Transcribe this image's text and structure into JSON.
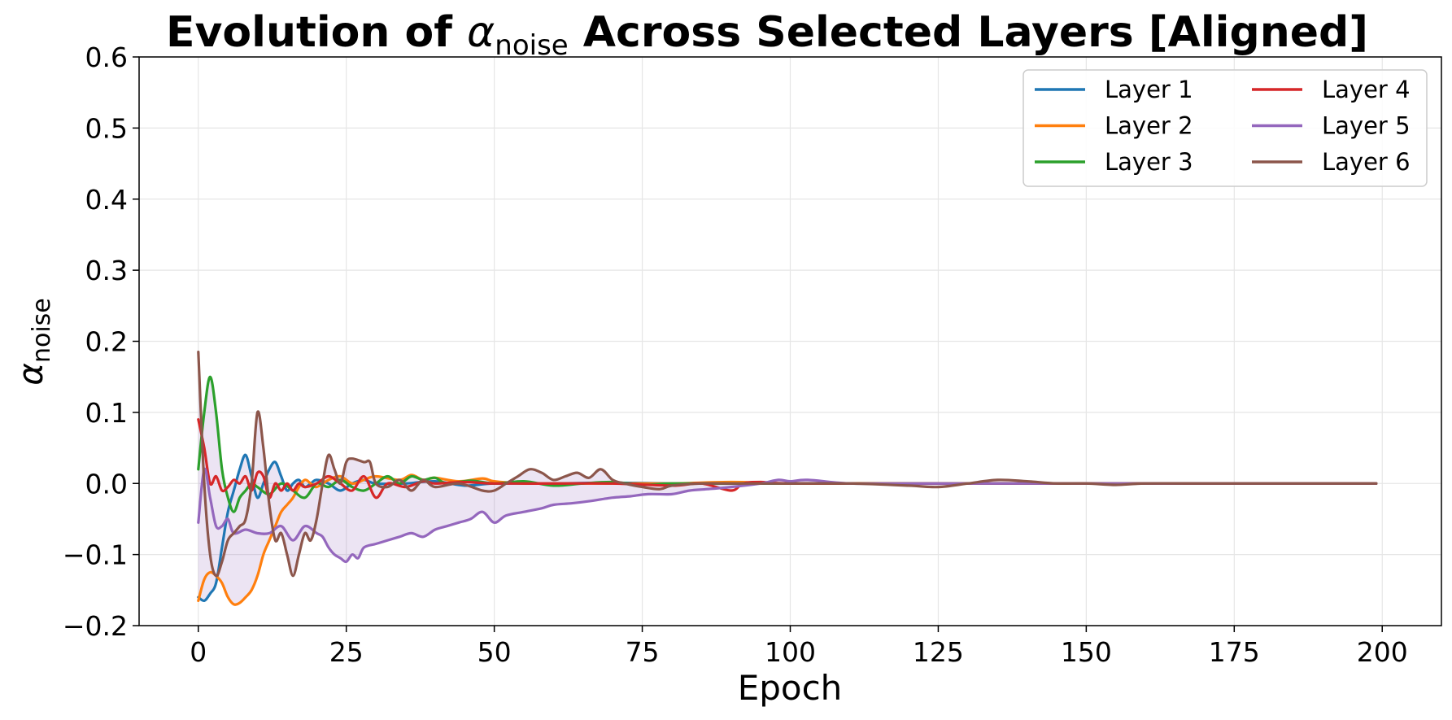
{
  "chart_data": {
    "type": "line",
    "title": {
      "prefix": "Evolution of ",
      "symbol": "α",
      "subscript": "noise",
      "suffix": " Across Selected Layers [Aligned]"
    },
    "xlabel": "Epoch",
    "ylabel": {
      "symbol": "α",
      "subscript": "noise"
    },
    "xlim": [
      -10,
      210
    ],
    "ylim": [
      -0.2,
      0.6
    ],
    "xticks": [
      0,
      25,
      50,
      75,
      100,
      125,
      150,
      175,
      200
    ],
    "xtick_labels": [
      "0",
      "25",
      "50",
      "75",
      "100",
      "125",
      "150",
      "175",
      "200"
    ],
    "yticks": [
      -0.2,
      -0.1,
      0.0,
      0.1,
      0.2,
      0.3,
      0.4,
      0.5,
      0.6
    ],
    "ytick_labels": [
      "−0.2",
      "−0.1",
      "0.0",
      "0.1",
      "0.2",
      "0.3",
      "0.4",
      "0.5",
      "0.6"
    ],
    "grid": true,
    "legend_position": "top-right",
    "legend_columns": 2,
    "band": {
      "label": "",
      "fill": "#9467bd",
      "opacity": 0.18
    },
    "series": [
      {
        "name": "Layer 1",
        "color": "#1f77b4",
        "points": [
          [
            0,
            -0.16
          ],
          [
            1,
            -0.165
          ],
          [
            2,
            -0.155
          ],
          [
            3,
            -0.14
          ],
          [
            4,
            -0.09
          ],
          [
            5,
            -0.04
          ],
          [
            6,
            -0.01
          ],
          [
            7,
            0.02
          ],
          [
            8,
            0.04
          ],
          [
            9,
            0.01
          ],
          [
            10,
            -0.02
          ],
          [
            11,
            0.0
          ],
          [
            12,
            0.02
          ],
          [
            13,
            0.03
          ],
          [
            14,
            0.01
          ],
          [
            15,
            -0.01
          ],
          [
            16,
            0.0
          ],
          [
            17,
            0.005
          ],
          [
            18,
            -0.005
          ],
          [
            19,
            0.0
          ],
          [
            20,
            0.005
          ],
          [
            22,
            0.0
          ],
          [
            24,
            -0.01
          ],
          [
            26,
            0.0
          ],
          [
            28,
            0.005
          ],
          [
            30,
            0.0
          ],
          [
            35,
            0.0
          ],
          [
            40,
            0.003
          ],
          [
            45,
            -0.003
          ],
          [
            50,
            0.0
          ],
          [
            60,
            0.0
          ],
          [
            70,
            0.001
          ],
          [
            80,
            0.0
          ],
          [
            90,
            0.0
          ],
          [
            100,
            0.0
          ],
          [
            120,
            0.0
          ],
          [
            150,
            0.0
          ],
          [
            180,
            0.0
          ],
          [
            199,
            0.0
          ]
        ]
      },
      {
        "name": "Layer 2",
        "color": "#ff7f0e",
        "points": [
          [
            0,
            -0.165
          ],
          [
            1,
            -0.135
          ],
          [
            2,
            -0.125
          ],
          [
            3,
            -0.13
          ],
          [
            4,
            -0.14
          ],
          [
            5,
            -0.16
          ],
          [
            6,
            -0.17
          ],
          [
            7,
            -0.168
          ],
          [
            8,
            -0.16
          ],
          [
            9,
            -0.15
          ],
          [
            10,
            -0.13
          ],
          [
            11,
            -0.1
          ],
          [
            12,
            -0.08
          ],
          [
            13,
            -0.06
          ],
          [
            14,
            -0.04
          ],
          [
            15,
            -0.03
          ],
          [
            16,
            -0.02
          ],
          [
            17,
            -0.005
          ],
          [
            18,
            0.005
          ],
          [
            19,
            0.0
          ],
          [
            20,
            -0.005
          ],
          [
            22,
            0.005
          ],
          [
            24,
            0.01
          ],
          [
            26,
            0.0
          ],
          [
            28,
            0.005
          ],
          [
            30,
            0.01
          ],
          [
            34,
            0.005
          ],
          [
            36,
            0.012
          ],
          [
            38,
            0.005
          ],
          [
            40,
            0.008
          ],
          [
            44,
            0.003
          ],
          [
            48,
            0.007
          ],
          [
            50,
            0.003
          ],
          [
            55,
            0.0
          ],
          [
            60,
            0.0
          ],
          [
            70,
            0.0
          ],
          [
            80,
            0.0
          ],
          [
            90,
            0.002
          ],
          [
            100,
            0.0
          ],
          [
            120,
            0.0
          ],
          [
            150,
            0.0
          ],
          [
            180,
            0.0
          ],
          [
            199,
            0.0
          ]
        ]
      },
      {
        "name": "Layer 3",
        "color": "#2ca02c",
        "points": [
          [
            0,
            0.02
          ],
          [
            1,
            0.1
          ],
          [
            2,
            0.15
          ],
          [
            3,
            0.1
          ],
          [
            4,
            0.02
          ],
          [
            5,
            -0.02
          ],
          [
            6,
            -0.04
          ],
          [
            7,
            -0.02
          ],
          [
            8,
            -0.01
          ],
          [
            9,
            0.0
          ],
          [
            10,
            -0.005
          ],
          [
            12,
            -0.015
          ],
          [
            14,
            0.0
          ],
          [
            16,
            -0.01
          ],
          [
            18,
            -0.02
          ],
          [
            20,
            0.0
          ],
          [
            22,
            -0.005
          ],
          [
            24,
            0.005
          ],
          [
            26,
            -0.005
          ],
          [
            28,
            -0.01
          ],
          [
            30,
            0.0
          ],
          [
            32,
            0.01
          ],
          [
            34,
            0.0
          ],
          [
            36,
            0.01
          ],
          [
            38,
            0.005
          ],
          [
            40,
            0.008
          ],
          [
            42,
            0.0
          ],
          [
            46,
            0.004
          ],
          [
            50,
            0.0
          ],
          [
            55,
            0.003
          ],
          [
            60,
            -0.003
          ],
          [
            65,
            0.0
          ],
          [
            70,
            0.002
          ],
          [
            75,
            -0.002
          ],
          [
            80,
            0.0
          ],
          [
            90,
            0.0
          ],
          [
            100,
            0.0
          ],
          [
            120,
            0.0
          ],
          [
            150,
            0.0
          ],
          [
            180,
            0.0
          ],
          [
            199,
            0.0
          ]
        ]
      },
      {
        "name": "Layer 4",
        "color": "#d62728",
        "points": [
          [
            0,
            0.09
          ],
          [
            1,
            0.05
          ],
          [
            2,
            0.0
          ],
          [
            3,
            0.01
          ],
          [
            4,
            -0.01
          ],
          [
            5,
            -0.005
          ],
          [
            6,
            0.005
          ],
          [
            7,
            0.0
          ],
          [
            8,
            0.01
          ],
          [
            9,
            -0.01
          ],
          [
            10,
            0.015
          ],
          [
            11,
            0.01
          ],
          [
            12,
            -0.02
          ],
          [
            13,
            0.0
          ],
          [
            14,
            -0.01
          ],
          [
            15,
            0.0
          ],
          [
            16,
            -0.01
          ],
          [
            17,
            0.0
          ],
          [
            18,
            -0.005
          ],
          [
            20,
            0.0
          ],
          [
            22,
            0.01
          ],
          [
            24,
            0.0
          ],
          [
            26,
            -0.01
          ],
          [
            28,
            0.01
          ],
          [
            30,
            -0.02
          ],
          [
            32,
            0.0
          ],
          [
            35,
            -0.005
          ],
          [
            38,
            0.003
          ],
          [
            40,
            0.0
          ],
          [
            45,
            0.002
          ],
          [
            50,
            0.0
          ],
          [
            60,
            0.0
          ],
          [
            70,
            0.0
          ],
          [
            80,
            -0.003
          ],
          [
            85,
            0.0
          ],
          [
            90,
            -0.01
          ],
          [
            92,
            0.0
          ],
          [
            95,
            0.002
          ],
          [
            100,
            0.0
          ],
          [
            120,
            0.0
          ],
          [
            150,
            0.0
          ],
          [
            180,
            0.0
          ],
          [
            199,
            0.0
          ]
        ]
      },
      {
        "name": "Layer 5",
        "color": "#9467bd",
        "points": [
          [
            0,
            -0.055
          ],
          [
            1,
            0.02
          ],
          [
            2,
            -0.02
          ],
          [
            3,
            -0.06
          ],
          [
            4,
            -0.06
          ],
          [
            5,
            -0.05
          ],
          [
            6,
            -0.07
          ],
          [
            8,
            -0.065
          ],
          [
            10,
            -0.07
          ],
          [
            12,
            -0.07
          ],
          [
            14,
            -0.06
          ],
          [
            16,
            -0.08
          ],
          [
            18,
            -0.06
          ],
          [
            20,
            -0.07
          ],
          [
            21,
            -0.075
          ],
          [
            22,
            -0.09
          ],
          [
            23,
            -0.1
          ],
          [
            24,
            -0.105
          ],
          [
            25,
            -0.11
          ],
          [
            26,
            -0.1
          ],
          [
            27,
            -0.105
          ],
          [
            28,
            -0.09
          ],
          [
            30,
            -0.085
          ],
          [
            32,
            -0.08
          ],
          [
            34,
            -0.075
          ],
          [
            36,
            -0.07
          ],
          [
            38,
            -0.075
          ],
          [
            40,
            -0.065
          ],
          [
            42,
            -0.06
          ],
          [
            44,
            -0.055
          ],
          [
            46,
            -0.05
          ],
          [
            48,
            -0.04
          ],
          [
            50,
            -0.055
          ],
          [
            52,
            -0.045
          ],
          [
            55,
            -0.04
          ],
          [
            58,
            -0.035
          ],
          [
            60,
            -0.03
          ],
          [
            63,
            -0.028
          ],
          [
            66,
            -0.025
          ],
          [
            70,
            -0.02
          ],
          [
            73,
            -0.018
          ],
          [
            76,
            -0.015
          ],
          [
            80,
            -0.015
          ],
          [
            83,
            -0.01
          ],
          [
            86,
            -0.008
          ],
          [
            90,
            -0.005
          ],
          [
            95,
            0.0
          ],
          [
            98,
            0.005
          ],
          [
            100,
            0.003
          ],
          [
            103,
            0.005
          ],
          [
            110,
            0.0
          ],
          [
            120,
            0.0
          ],
          [
            140,
            0.0
          ],
          [
            150,
            0.0
          ],
          [
            180,
            0.0
          ],
          [
            199,
            0.0
          ]
        ]
      },
      {
        "name": "Layer 6",
        "color": "#8c564b",
        "points": [
          [
            0,
            0.185
          ],
          [
            1,
            0.0
          ],
          [
            2,
            -0.1
          ],
          [
            3,
            -0.13
          ],
          [
            4,
            -0.11
          ],
          [
            5,
            -0.08
          ],
          [
            6,
            -0.07
          ],
          [
            7,
            -0.06
          ],
          [
            8,
            -0.05
          ],
          [
            9,
            0.0
          ],
          [
            10,
            0.1
          ],
          [
            11,
            0.05
          ],
          [
            12,
            -0.03
          ],
          [
            13,
            -0.08
          ],
          [
            14,
            -0.07
          ],
          [
            15,
            -0.1
          ],
          [
            16,
            -0.13
          ],
          [
            17,
            -0.1
          ],
          [
            18,
            -0.07
          ],
          [
            19,
            -0.08
          ],
          [
            20,
            -0.05
          ],
          [
            21,
            0.0
          ],
          [
            22,
            0.04
          ],
          [
            23,
            0.02
          ],
          [
            24,
            0.0
          ],
          [
            25,
            0.03
          ],
          [
            26,
            0.035
          ],
          [
            28,
            0.03
          ],
          [
            29,
            0.03
          ],
          [
            30,
            0.0
          ],
          [
            32,
            -0.005
          ],
          [
            34,
            0.005
          ],
          [
            36,
            -0.01
          ],
          [
            38,
            0.005
          ],
          [
            40,
            -0.005
          ],
          [
            44,
            0.0
          ],
          [
            48,
            -0.01
          ],
          [
            50,
            -0.01
          ],
          [
            52,
            0.0
          ],
          [
            54,
            0.01
          ],
          [
            56,
            0.02
          ],
          [
            58,
            0.015
          ],
          [
            60,
            0.005
          ],
          [
            62,
            0.01
          ],
          [
            64,
            0.015
          ],
          [
            66,
            0.008
          ],
          [
            68,
            0.02
          ],
          [
            70,
            0.005
          ],
          [
            72,
            0.0
          ],
          [
            75,
            -0.005
          ],
          [
            78,
            -0.008
          ],
          [
            80,
            -0.003
          ],
          [
            85,
            0.0
          ],
          [
            90,
            0.0
          ],
          [
            100,
            0.0
          ],
          [
            110,
            0.0
          ],
          [
            120,
            -0.003
          ],
          [
            125,
            -0.005
          ],
          [
            130,
            0.0
          ],
          [
            135,
            0.005
          ],
          [
            140,
            0.003
          ],
          [
            145,
            0.0
          ],
          [
            150,
            0.0
          ],
          [
            155,
            -0.002
          ],
          [
            160,
            0.0
          ],
          [
            170,
            0.0
          ],
          [
            180,
            0.0
          ],
          [
            190,
            0.0
          ],
          [
            199,
            0.0
          ]
        ]
      }
    ]
  }
}
